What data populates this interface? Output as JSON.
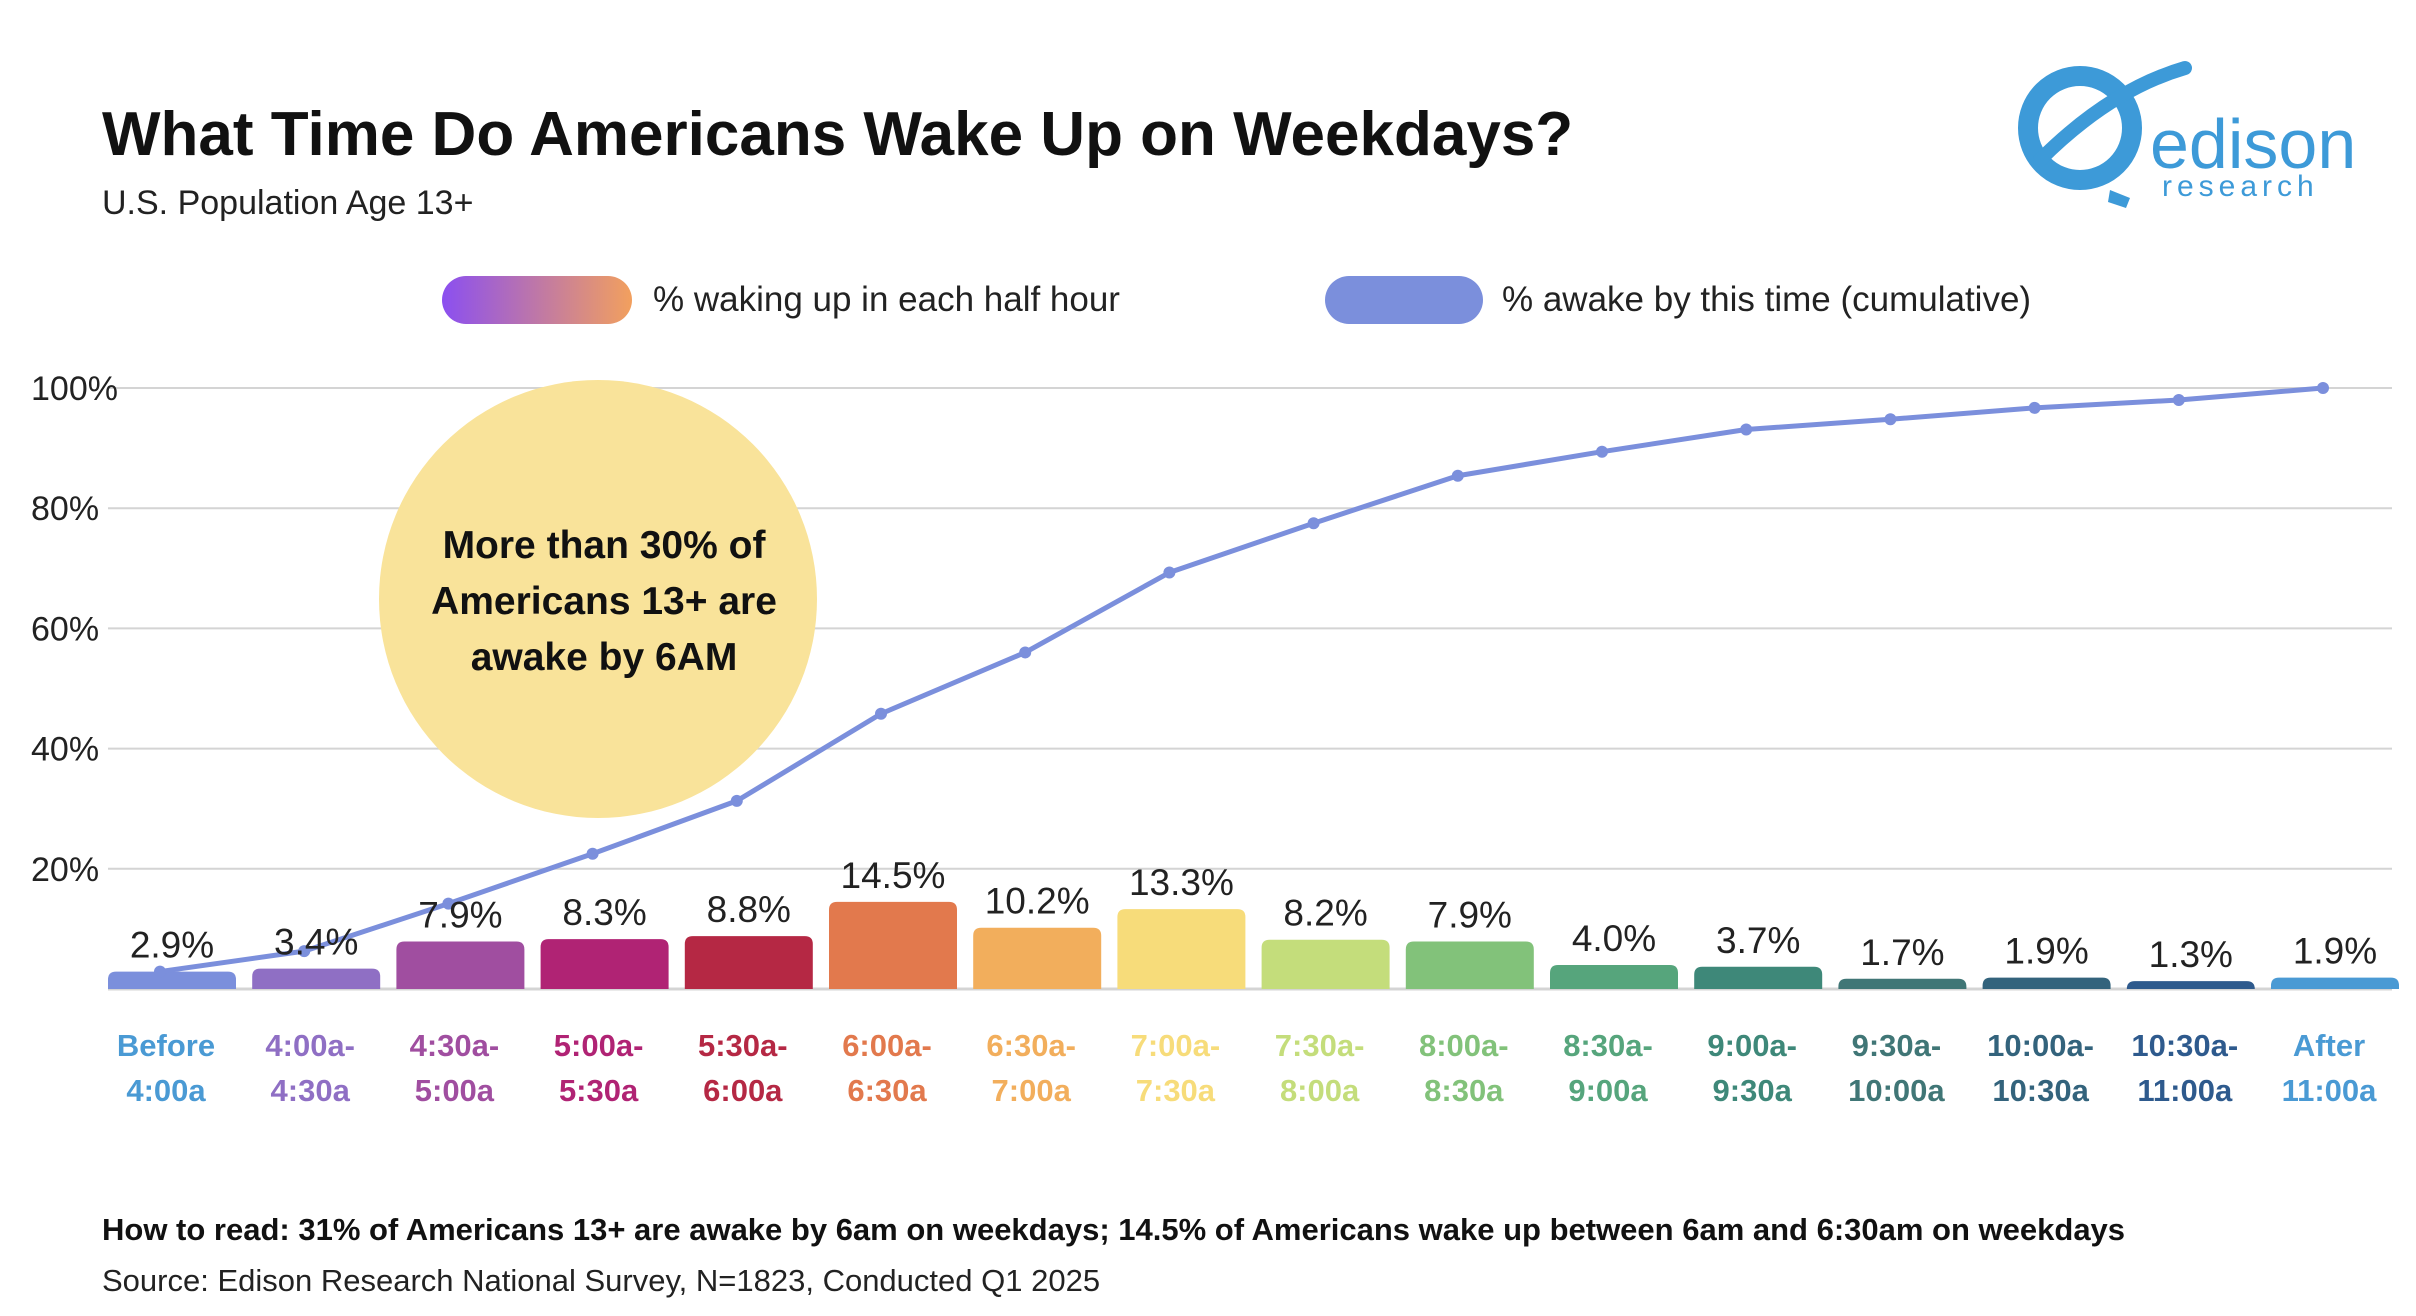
{
  "header": {
    "title": "What Time Do Americans Wake Up on Weekdays?",
    "subtitle": "U.S. Population Age 13+"
  },
  "logo": {
    "text": "edison",
    "subtext": "research",
    "color": "#3d9ad8"
  },
  "callout": {
    "lines": [
      "More than 30% of",
      "Americans 13+ are",
      "awake by 6AM"
    ],
    "color": "#f9e39a"
  },
  "footer": {
    "how_to_read": "How to read: 31% of Americans 13+ are awake by 6am on weekdays; 14.5% of Americans wake up between 6am and 6:30am on weekdays",
    "source": "Source: Edison Research National Survey, N=1823, Conducted Q1 2025"
  },
  "chart_data": {
    "type": "bar",
    "title": "What Time Do Americans Wake Up on Weekdays?",
    "ylim": [
      0,
      100
    ],
    "yticks": [
      "20%",
      "40%",
      "60%",
      "80%",
      "100%"
    ],
    "ytick_values": [
      20,
      40,
      60,
      80,
      100
    ],
    "grid": true,
    "legend_position": "top",
    "legend": [
      "% waking up in each half hour",
      "% awake by this time (cumulative)"
    ],
    "categories": [
      [
        "Before",
        "4:00a"
      ],
      [
        "4:00a-",
        "4:30a"
      ],
      [
        "4:30a-",
        "5:00a"
      ],
      [
        "5:00a-",
        "5:30a"
      ],
      [
        "5:30a-",
        "6:00a"
      ],
      [
        "6:00a-",
        "6:30a"
      ],
      [
        "6:30a-",
        "7:00a"
      ],
      [
        "7:00a-",
        "7:30a"
      ],
      [
        "7:30a-",
        "8:00a"
      ],
      [
        "8:00a-",
        "8:30a"
      ],
      [
        "8:30a-",
        "9:00a"
      ],
      [
        "9:00a-",
        "9:30a"
      ],
      [
        "9:30a-",
        "10:00a"
      ],
      [
        "10:00a-",
        "10:30a"
      ],
      [
        "10:30a-",
        "11:00a"
      ],
      [
        "After",
        "11:00a"
      ]
    ],
    "series": [
      {
        "name": "% waking up in each half hour",
        "type": "bar",
        "values": [
          2.9,
          3.4,
          7.9,
          8.3,
          8.8,
          14.5,
          10.2,
          13.3,
          8.2,
          7.9,
          4.0,
          3.7,
          1.7,
          1.9,
          1.3,
          1.9
        ],
        "labels": [
          "2.9%",
          "3.4%",
          "7.9%",
          "8.3%",
          "8.8%",
          "14.5%",
          "10.2%",
          "13.3%",
          "8.2%",
          "7.9%",
          "4.0%",
          "3.7%",
          "1.7%",
          "1.9%",
          "1.3%",
          "1.9%"
        ]
      },
      {
        "name": "% awake by this time (cumulative)",
        "type": "line",
        "color": "#7b8fdc",
        "values": [
          2.9,
          6.3,
          14.2,
          22.5,
          31.3,
          45.8,
          56.0,
          69.3,
          77.5,
          85.4,
          89.4,
          93.1,
          94.8,
          96.7,
          98.0,
          100
        ]
      }
    ],
    "bar_colors": [
      "#7b8fdc",
      "#8f6fc4",
      "#a04ea0",
      "#b02374",
      "#b52844",
      "#e2794d",
      "#f2ae5c",
      "#f7dc7a",
      "#c4dd7b",
      "#82c27a",
      "#56a57c",
      "#3e8879",
      "#407676",
      "#33637c",
      "#2e5a8d",
      "#4a9ad4"
    ],
    "label_colors": [
      "#4a9ad4",
      "#8f6fc4",
      "#a04ea0",
      "#b02374",
      "#b52844",
      "#e2794d",
      "#f2ae5c",
      "#f7dc7a",
      "#c4dd7b",
      "#82c27a",
      "#56a57c",
      "#3e8879",
      "#407676",
      "#33637c",
      "#2e5a8d",
      "#4a9ad4"
    ]
  }
}
